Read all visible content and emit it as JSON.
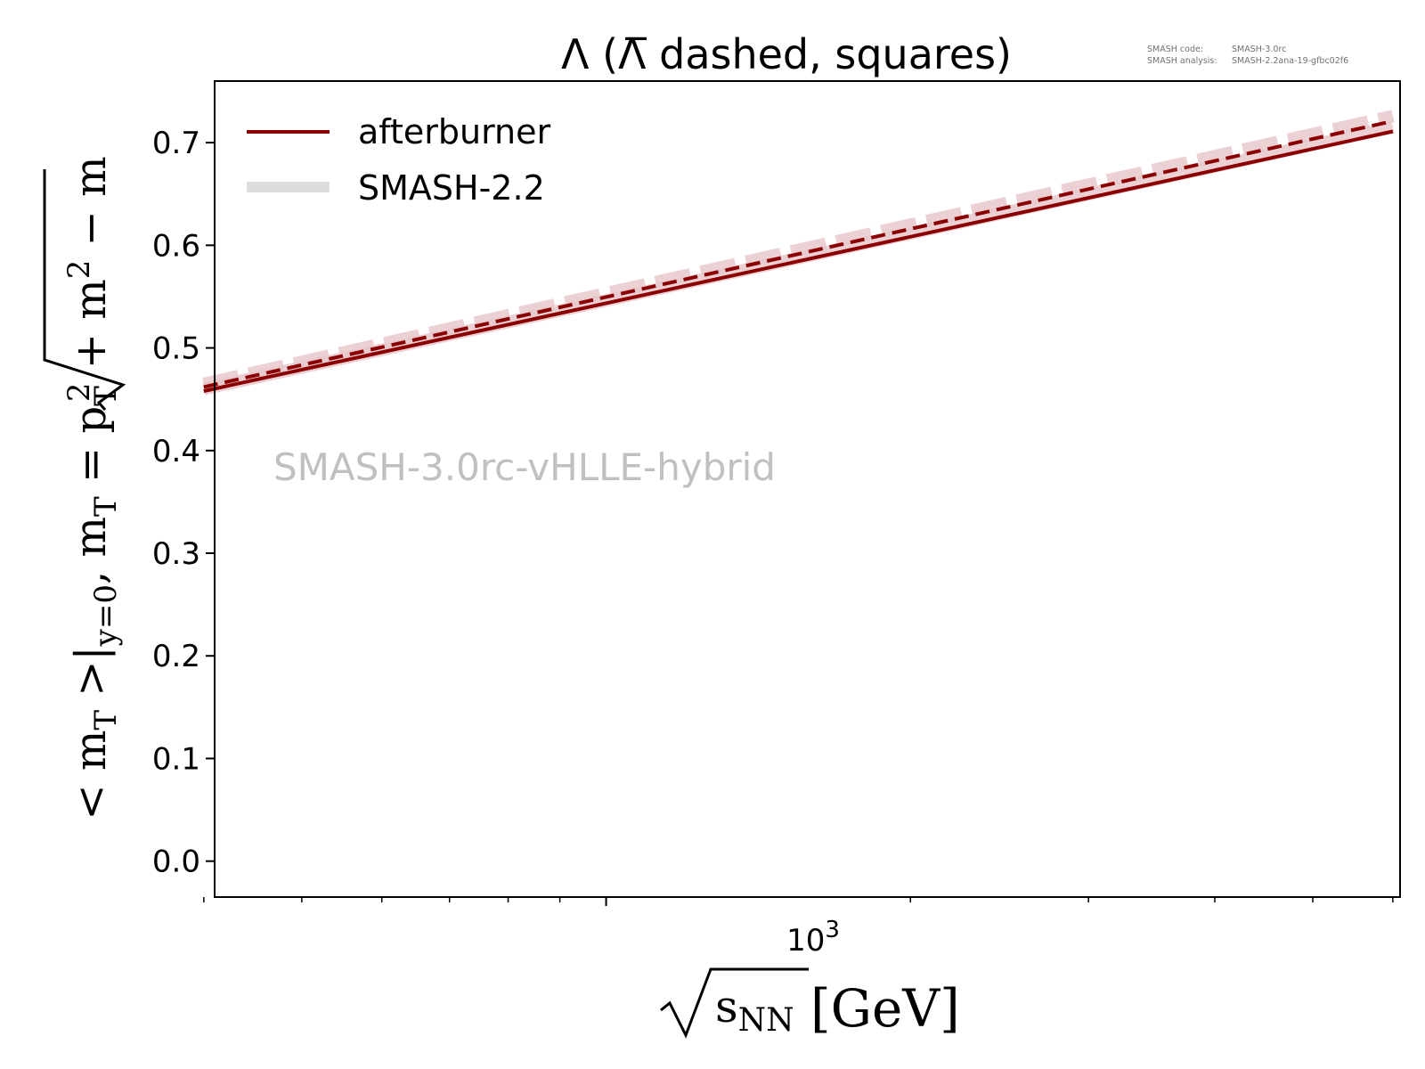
{
  "chart_data": {
    "type": "line",
    "title": "Λ (Λ̅ dashed, squares)",
    "annotation": "SMASH-3.0rc-vHLLE-hybrid",
    "meta": {
      "code_label": "SMASH code:",
      "code_value": "SMASH-3.0rc",
      "analysis_label": "SMASH analysis:",
      "analysis_value": "SMASH-2.2ana-19-gfbc02f6"
    },
    "xlabel": {
      "root": "s",
      "subscript": "NN",
      "unit": "[GeV]"
    },
    "ylabel": {
      "part1": "< m",
      "part1_sub": "T",
      "part2": " >|",
      "part2_sub": "y=0",
      "part3": ", m",
      "part3_sub": "T",
      "part4": " = ",
      "rad_p": "p",
      "rad_p_sub": "T",
      "rad_p_sup": "2",
      "rad_plus": " + m",
      "rad_m_sup": "2",
      "tail": " − m"
    },
    "x_scale": "log",
    "xlim": [
      410,
      6100
    ],
    "ylim": [
      -0.035,
      0.76
    ],
    "x_ticks": [
      {
        "value": 1000,
        "base": "10",
        "exp": "3"
      }
    ],
    "x_minor_ticks": [
      400,
      500,
      600,
      700,
      800,
      900,
      2000,
      3000,
      4000,
      5000,
      6000
    ],
    "y_ticks": [
      {
        "value": 0.0,
        "label": "0.0"
      },
      {
        "value": 0.1,
        "label": "0.1"
      },
      {
        "value": 0.2,
        "label": "0.2"
      },
      {
        "value": 0.3,
        "label": "0.3"
      },
      {
        "value": 0.4,
        "label": "0.4"
      },
      {
        "value": 0.5,
        "label": "0.5"
      },
      {
        "value": 0.6,
        "label": "0.6"
      },
      {
        "value": 0.7,
        "label": "0.7"
      }
    ],
    "grid": false,
    "legend": {
      "placement": "top-left",
      "entries": [
        {
          "label": "afterburner",
          "color": "#8b0000"
        },
        {
          "label": "SMASH-2.2",
          "color": "#dddddd"
        }
      ]
    },
    "series": [
      {
        "name": "afterburner",
        "style": "solid",
        "color": "#8b0000",
        "x": [
          400,
          6000
        ],
        "y": [
          0.458,
          0.711
        ]
      },
      {
        "style": "dashed",
        "color": "#8b0000",
        "x": [
          400,
          6000
        ],
        "y": [
          0.462,
          0.721
        ]
      },
      {
        "name": "SMASH-2.2",
        "style": "band",
        "color": "#e8c8cc",
        "x": [
          400,
          6000
        ],
        "y": [
          0.46,
          0.715
        ]
      },
      {
        "style": "band-dashed",
        "color": "#e8c8cc",
        "x": [
          400,
          6000
        ],
        "y": [
          0.465,
          0.726
        ]
      }
    ]
  }
}
